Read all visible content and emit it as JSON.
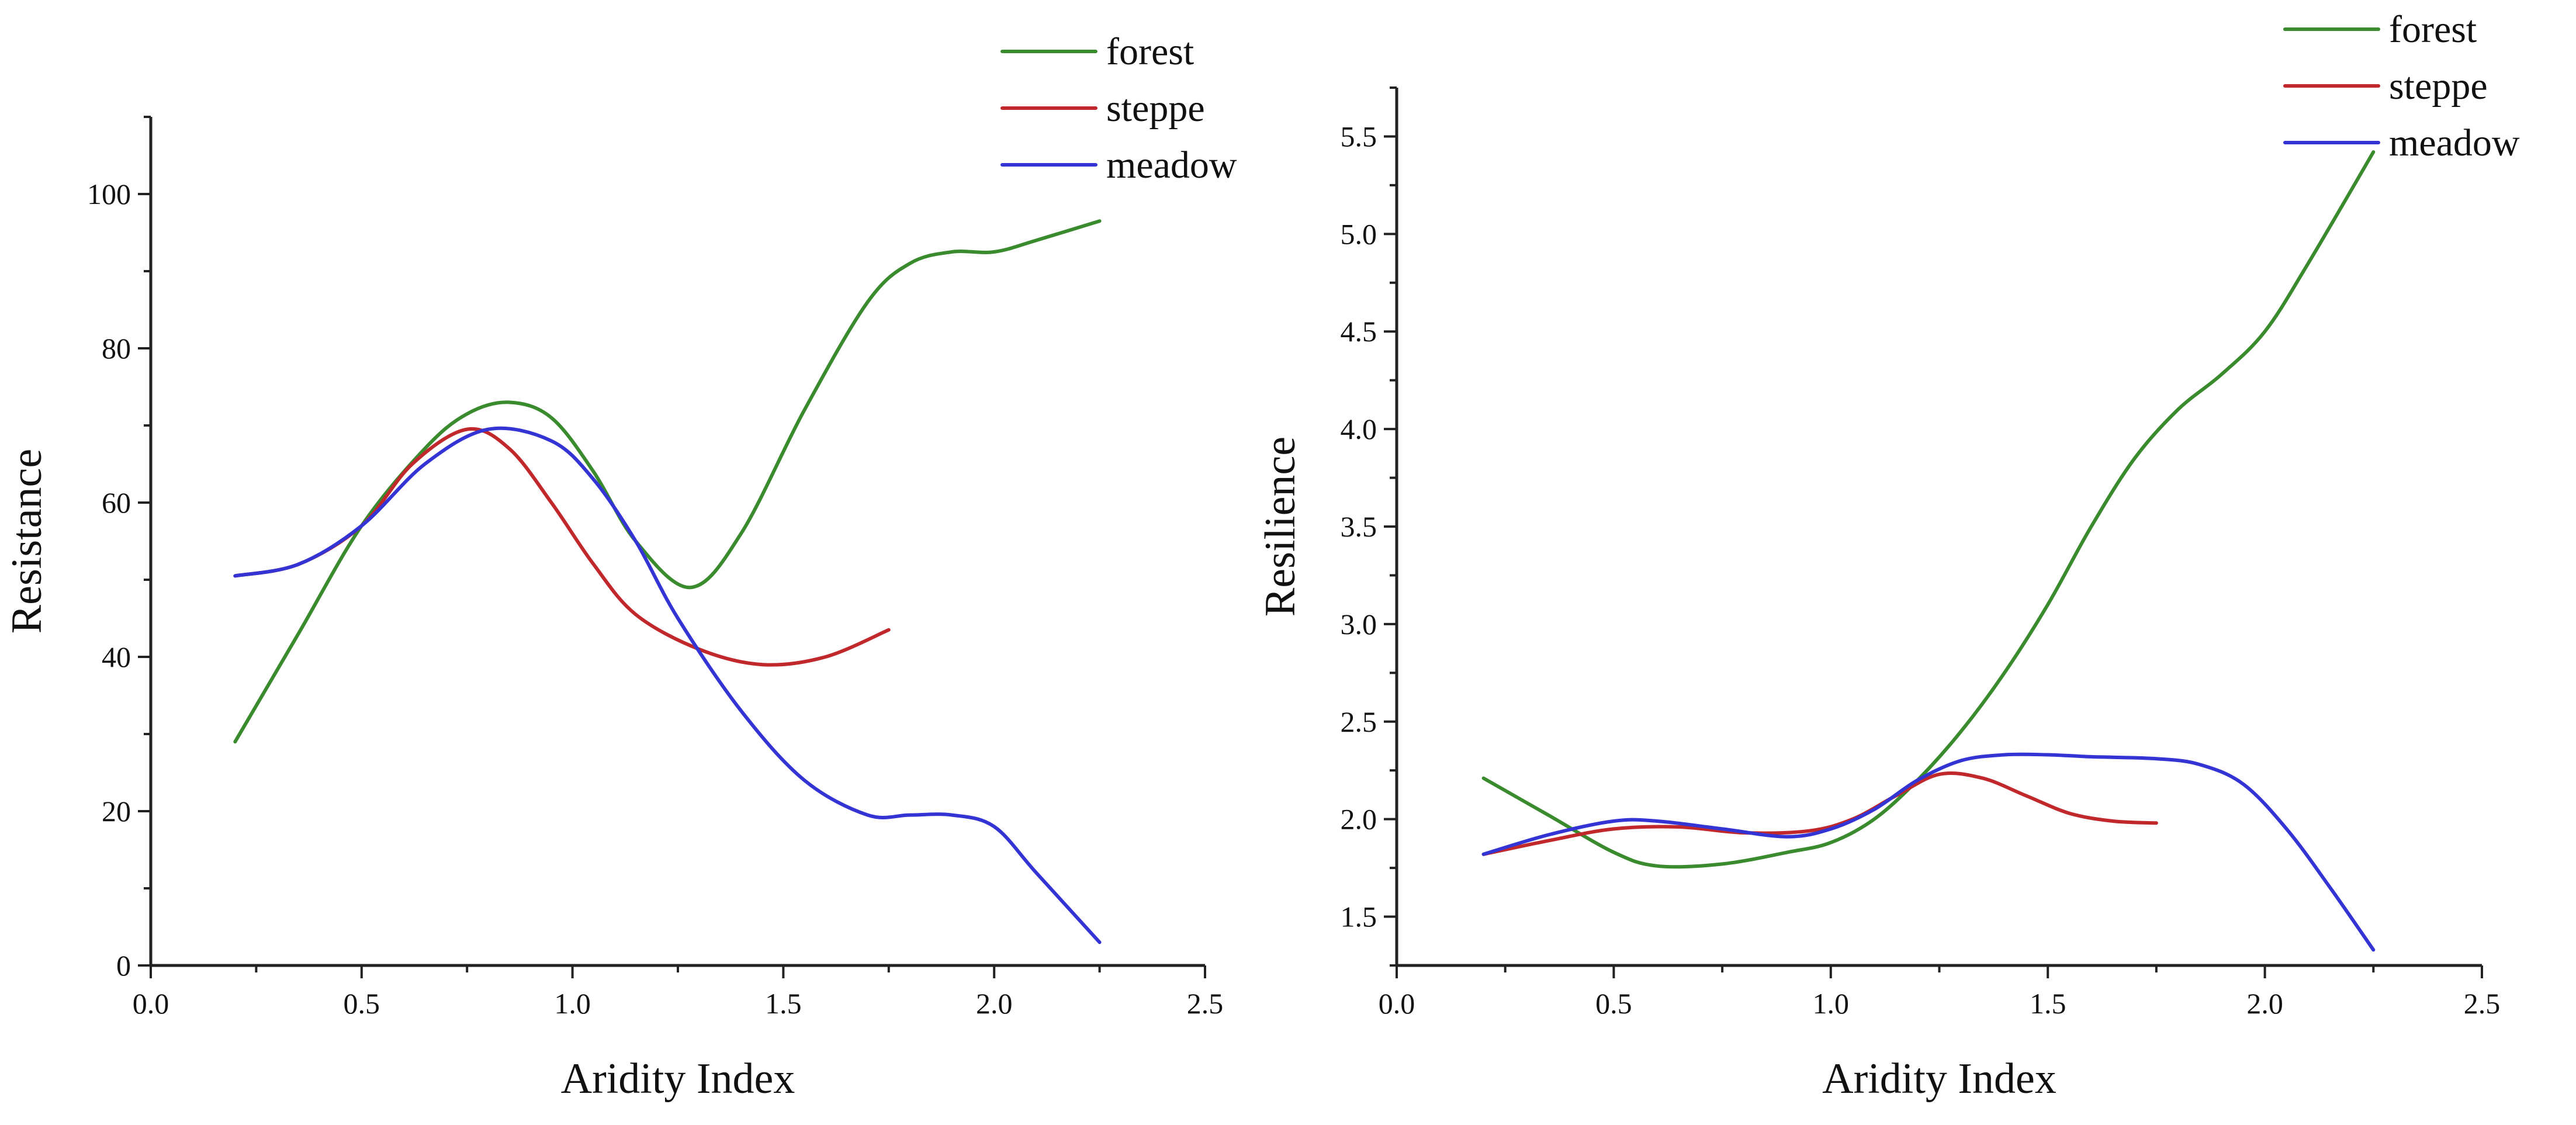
{
  "chart_data": [
    {
      "type": "line",
      "title": "",
      "xlabel": "Aridity  Index",
      "ylabel": "Resistance",
      "xlim": [
        0.0,
        2.5
      ],
      "ylim": [
        0,
        110
      ],
      "xticks": [
        0.0,
        0.5,
        1.0,
        1.5,
        2.0,
        2.5
      ],
      "xtick_labels": [
        "0.0",
        "0.5",
        "1.0",
        "1.5",
        "2.0",
        "2.5"
      ],
      "yticks": [
        0,
        20,
        40,
        60,
        80,
        100
      ],
      "ytick_labels": [
        "0",
        "20",
        "40",
        "60",
        "80",
        "100"
      ],
      "legend_position": "top-right",
      "series": [
        {
          "name": "forest",
          "color": "#3a8a2e",
          "x": [
            0.2,
            0.35,
            0.5,
            0.65,
            0.75,
            0.85,
            0.95,
            1.05,
            1.15,
            1.28,
            1.4,
            1.55,
            1.7,
            1.8,
            1.9,
            2.0,
            2.1,
            2.25
          ],
          "y": [
            29,
            43,
            57,
            67,
            71.5,
            73,
            71,
            64,
            55,
            49,
            56,
            72,
            86,
            91,
            92.5,
            92.5,
            94,
            96.5
          ]
        },
        {
          "name": "steppe",
          "color": "#c0282b",
          "x": [
            0.2,
            0.35,
            0.5,
            0.62,
            0.75,
            0.85,
            0.95,
            1.05,
            1.15,
            1.3,
            1.45,
            1.6,
            1.75
          ],
          "y": [
            50.5,
            52,
            57,
            65,
            69.5,
            67,
            60,
            52,
            45.5,
            41,
            39,
            40,
            43.5
          ]
        },
        {
          "name": "meadow",
          "color": "#3434d4",
          "x": [
            0.2,
            0.35,
            0.5,
            0.65,
            0.8,
            0.95,
            1.05,
            1.15,
            1.25,
            1.4,
            1.55,
            1.7,
            1.8,
            1.9,
            2.0,
            2.1,
            2.25
          ],
          "y": [
            50.5,
            52,
            57,
            65,
            69.5,
            68,
            63,
            55,
            45,
            33,
            24,
            19.5,
            19.5,
            19.5,
            18,
            12,
            3
          ]
        }
      ]
    },
    {
      "type": "line",
      "title": "",
      "xlabel": "Aridity  Index",
      "ylabel": "Resilience",
      "xlim": [
        0.0,
        2.5
      ],
      "ylim": [
        1.25,
        5.75
      ],
      "xticks": [
        0.0,
        0.5,
        1.0,
        1.5,
        2.0,
        2.5
      ],
      "xtick_labels": [
        "0.0",
        "0.5",
        "1.0",
        "1.5",
        "2.0",
        "2.5"
      ],
      "yticks": [
        1.5,
        2.0,
        2.5,
        3.0,
        3.5,
        4.0,
        4.5,
        5.0,
        5.5
      ],
      "ytick_labels": [
        "1.5",
        "2.0",
        "2.5",
        "3.0",
        "3.5",
        "4.0",
        "4.5",
        "5.0",
        "5.5"
      ],
      "legend_position": "top-right",
      "series": [
        {
          "name": "forest",
          "color": "#3a8a2e",
          "x": [
            0.2,
            0.35,
            0.5,
            0.6,
            0.75,
            0.9,
            1.0,
            1.1,
            1.2,
            1.3,
            1.4,
            1.5,
            1.6,
            1.7,
            1.8,
            1.9,
            2.0,
            2.1,
            2.25
          ],
          "y": [
            2.21,
            2.02,
            1.83,
            1.76,
            1.77,
            1.83,
            1.88,
            2.0,
            2.2,
            2.45,
            2.75,
            3.1,
            3.5,
            3.85,
            4.1,
            4.28,
            4.5,
            4.85,
            5.42
          ]
        },
        {
          "name": "steppe",
          "color": "#c0282b",
          "x": [
            0.2,
            0.35,
            0.5,
            0.65,
            0.8,
            0.95,
            1.05,
            1.15,
            1.25,
            1.35,
            1.45,
            1.55,
            1.65,
            1.75
          ],
          "y": [
            1.82,
            1.89,
            1.95,
            1.96,
            1.93,
            1.94,
            2.0,
            2.12,
            2.23,
            2.21,
            2.12,
            2.03,
            1.99,
            1.98
          ]
        },
        {
          "name": "meadow",
          "color": "#3434d4",
          "x": [
            0.2,
            0.35,
            0.5,
            0.6,
            0.75,
            0.9,
            1.0,
            1.1,
            1.2,
            1.3,
            1.4,
            1.5,
            1.6,
            1.75,
            1.85,
            1.95,
            2.05,
            2.15,
            2.25
          ],
          "y": [
            1.82,
            1.92,
            1.99,
            1.99,
            1.95,
            1.91,
            1.95,
            2.05,
            2.2,
            2.3,
            2.33,
            2.33,
            2.32,
            2.31,
            2.28,
            2.18,
            1.95,
            1.65,
            1.33
          ]
        }
      ]
    }
  ]
}
